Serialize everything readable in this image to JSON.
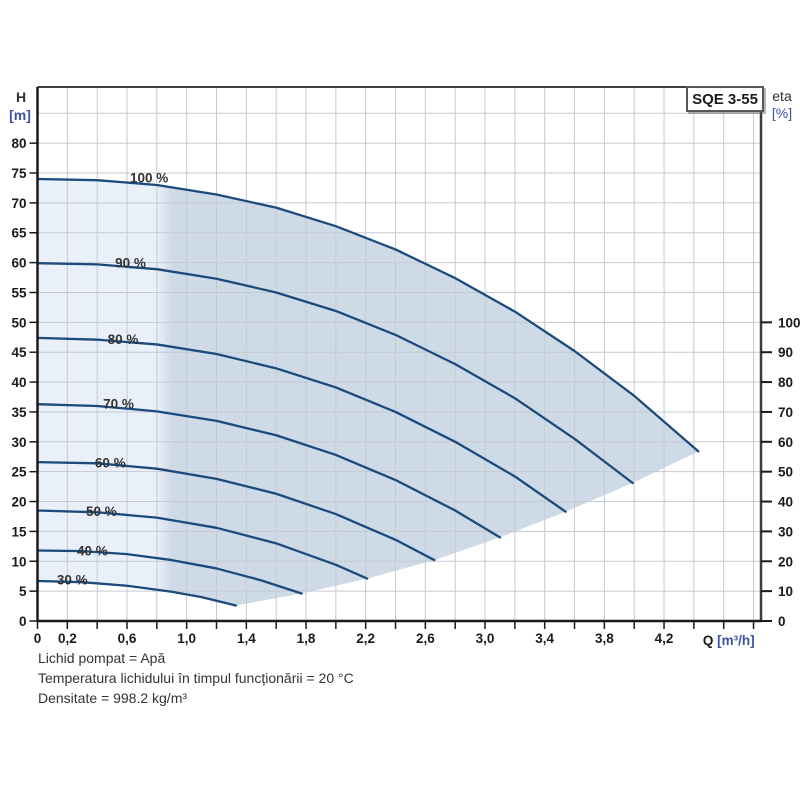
{
  "title_box": "SQE 3-55",
  "axes": {
    "left": {
      "letter": "H",
      "unit": "[m]"
    },
    "right": {
      "letter": "eta",
      "unit": "[%]"
    },
    "bottom": {
      "letter": "Q",
      "unit": "[m³/h]"
    }
  },
  "annotations": [
    "Lichid pompat = Apă",
    "Temperatura lichidului în timpul funcționării = 20 °C",
    "Densitate = 998.2 kg/m³"
  ],
  "chart_data": {
    "type": "line",
    "title": "SQE 3-55",
    "xlabel": "Q [m³/h]",
    "ylabel": "H [m]",
    "y2label": "eta [%]",
    "xlim": [
      0,
      4.85
    ],
    "ylim": [
      0,
      89.4
    ],
    "y2lim": [
      0,
      100
    ],
    "grid": true,
    "x_tick_step": 0.2,
    "x_tick_labels": [
      {
        "v": 0.0,
        "t": "0"
      },
      {
        "v": 0.2,
        "t": "0,2"
      },
      {
        "v": 0.6,
        "t": "0,6"
      },
      {
        "v": 1.0,
        "t": "1,0"
      },
      {
        "v": 1.4,
        "t": "1,4"
      },
      {
        "v": 1.8,
        "t": "1,8"
      },
      {
        "v": 2.2,
        "t": "2,2"
      },
      {
        "v": 2.6,
        "t": "2,6"
      },
      {
        "v": 3.0,
        "t": "3,0"
      },
      {
        "v": 3.4,
        "t": "3,4"
      },
      {
        "v": 3.8,
        "t": "3,8"
      },
      {
        "v": 4.2,
        "t": "4,2"
      }
    ],
    "y_tick_step": 5,
    "y_tick_max": 80,
    "y2_tick_step": 10,
    "y2_tick_max": 100,
    "y2_scale_h_per_pct": 0.5,
    "series": [
      {
        "name": "100 %",
        "speed_pct": 100,
        "label_anchor": [
          0.62,
          73.4
        ],
        "points": [
          [
            0,
            74
          ],
          [
            0.4,
            73.8
          ],
          [
            0.8,
            73.0
          ],
          [
            1.2,
            71.4
          ],
          [
            1.6,
            69.2
          ],
          [
            2.0,
            66.1
          ],
          [
            2.4,
            62.2
          ],
          [
            2.8,
            57.4
          ],
          [
            3.2,
            51.8
          ],
          [
            3.6,
            45.2
          ],
          [
            4.0,
            37.7
          ],
          [
            4.43,
            28.4
          ]
        ]
      },
      {
        "name": "90 %",
        "speed_pct": 90,
        "label_anchor": [
          0.52,
          59.2
        ],
        "points": [
          [
            0,
            59.9
          ],
          [
            0.4,
            59.7
          ],
          [
            0.8,
            58.9
          ],
          [
            1.2,
            57.3
          ],
          [
            1.6,
            55.0
          ],
          [
            2.0,
            51.9
          ],
          [
            2.4,
            47.9
          ],
          [
            2.8,
            43.0
          ],
          [
            3.2,
            37.3
          ],
          [
            3.6,
            30.5
          ],
          [
            3.99,
            23.1
          ]
        ]
      },
      {
        "name": "80 %",
        "speed_pct": 80,
        "label_anchor": [
          0.47,
          46.4
        ],
        "points": [
          [
            0,
            47.4
          ],
          [
            0.4,
            47.1
          ],
          [
            0.8,
            46.3
          ],
          [
            1.2,
            44.7
          ],
          [
            1.6,
            42.3
          ],
          [
            2.0,
            39.1
          ],
          [
            2.4,
            35.0
          ],
          [
            2.8,
            30.0
          ],
          [
            3.2,
            24.2
          ],
          [
            3.54,
            18.3
          ]
        ]
      },
      {
        "name": "70 %",
        "speed_pct": 70,
        "label_anchor": [
          0.44,
          35.6
        ],
        "points": [
          [
            0,
            36.3
          ],
          [
            0.4,
            36.0
          ],
          [
            0.8,
            35.1
          ],
          [
            1.2,
            33.5
          ],
          [
            1.6,
            31.1
          ],
          [
            2.0,
            27.8
          ],
          [
            2.4,
            23.6
          ],
          [
            2.8,
            18.5
          ],
          [
            3.1,
            14.0
          ]
        ]
      },
      {
        "name": "60 %",
        "speed_pct": 60,
        "label_anchor": [
          0.385,
          25.7
        ],
        "points": [
          [
            0,
            26.6
          ],
          [
            0.4,
            26.4
          ],
          [
            0.8,
            25.5
          ],
          [
            1.2,
            23.8
          ],
          [
            1.6,
            21.3
          ],
          [
            2.0,
            17.9
          ],
          [
            2.4,
            13.6
          ],
          [
            2.66,
            10.2
          ]
        ]
      },
      {
        "name": "50 %",
        "speed_pct": 50,
        "label_anchor": [
          0.325,
          17.6
        ],
        "points": [
          [
            0,
            18.5
          ],
          [
            0.4,
            18.2
          ],
          [
            0.8,
            17.3
          ],
          [
            1.2,
            15.6
          ],
          [
            1.6,
            13.0
          ],
          [
            2.0,
            9.4
          ],
          [
            2.21,
            7.1
          ]
        ]
      },
      {
        "name": "40 %",
        "speed_pct": 40,
        "label_anchor": [
          0.265,
          11.0
        ],
        "points": [
          [
            0,
            11.8
          ],
          [
            0.3,
            11.7
          ],
          [
            0.6,
            11.2
          ],
          [
            0.9,
            10.2
          ],
          [
            1.2,
            8.8
          ],
          [
            1.5,
            6.8
          ],
          [
            1.77,
            4.6
          ]
        ]
      },
      {
        "name": "30 %",
        "speed_pct": 30,
        "label_anchor": [
          0.13,
          6.1
        ],
        "points": [
          [
            0,
            6.7
          ],
          [
            0.3,
            6.5
          ],
          [
            0.6,
            5.9
          ],
          [
            0.9,
            4.9
          ],
          [
            1.1,
            4.0
          ],
          [
            1.33,
            2.6
          ]
        ]
      }
    ],
    "max_flow_envelope": [
      [
        1.33,
        2.6
      ],
      [
        1.77,
        4.6
      ],
      [
        2.21,
        7.1
      ],
      [
        2.66,
        10.2
      ],
      [
        3.1,
        14.0
      ],
      [
        3.54,
        18.3
      ],
      [
        3.99,
        23.1
      ],
      [
        4.43,
        28.4
      ]
    ],
    "operating_band_split_q": 0.845,
    "colors": {
      "curve": "#1b4a7d",
      "fill_light": "#e9f0f9",
      "fill_dark": "#cfdae7",
      "grid": "#c5cad1",
      "tick_text": "#1a1a1a",
      "curve_label": "#333333",
      "spine": "#3c3c3c",
      "axis_black": "#1a1a1a",
      "unit_blue": "#3a53a4"
    }
  }
}
